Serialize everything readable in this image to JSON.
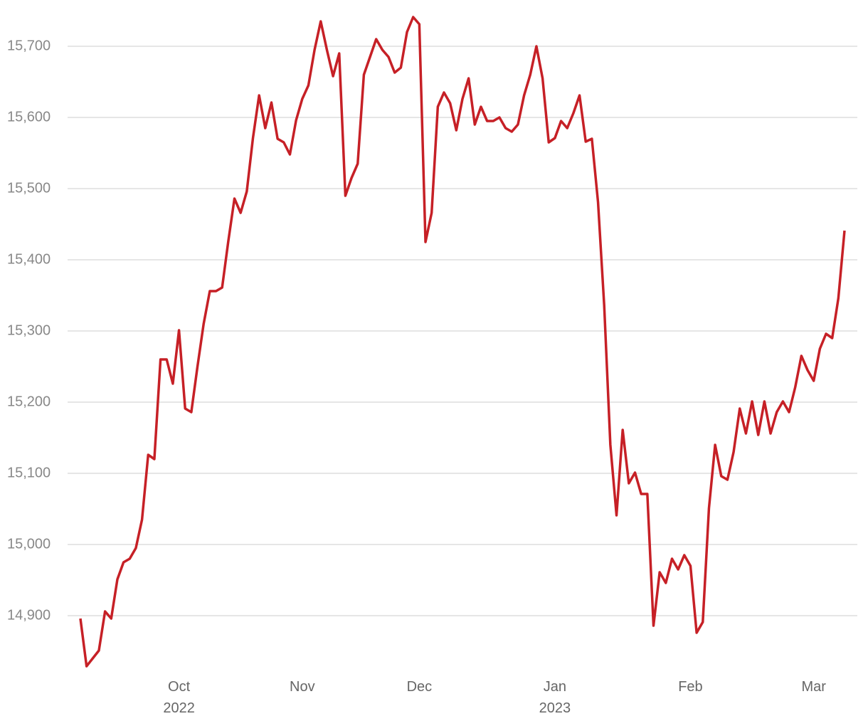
{
  "chart_data": {
    "type": "line",
    "categories": [
      null,
      null,
      null,
      null,
      null,
      null,
      null,
      null,
      null,
      null,
      null,
      null,
      null,
      null,
      null,
      null,
      "Oct 2022",
      null,
      null,
      null,
      null,
      null,
      null,
      null,
      null,
      null,
      null,
      null,
      null,
      null,
      null,
      null,
      null,
      null,
      null,
      null,
      "Nov",
      null,
      null,
      null,
      null,
      null,
      null,
      null,
      null,
      null,
      null,
      null,
      null,
      null,
      null,
      null,
      null,
      null,
      null,
      "Dec",
      null,
      null,
      null,
      null,
      null,
      null,
      null,
      null,
      null,
      null,
      null,
      null,
      null,
      null,
      null,
      null,
      null,
      null,
      null,
      null,
      null,
      "Jan 2023",
      null,
      null,
      null,
      null,
      null,
      null,
      null,
      null,
      null,
      null,
      null,
      null,
      null,
      null,
      null,
      null,
      null,
      null,
      null,
      null,
      null,
      "Feb",
      null,
      null,
      null,
      null,
      null,
      null,
      null,
      null,
      null,
      null,
      null,
      null,
      null,
      null,
      null,
      null,
      null,
      null,
      null,
      "Mar",
      null,
      null,
      null,
      null,
      null
    ],
    "values": [
      14896,
      14829,
      14840,
      14851,
      14906,
      14896,
      14951,
      14975,
      14980,
      14995,
      15035,
      15126,
      15120,
      15260,
      15260,
      15226,
      15301,
      15191,
      15186,
      15250,
      15310,
      15356,
      15356,
      15361,
      15426,
      15486,
      15466,
      15496,
      15571,
      15631,
      15585,
      15621,
      15570,
      15565,
      15548,
      15596,
      15626,
      15645,
      15695,
      15735,
      15695,
      15658,
      15690,
      15490,
      15515,
      15535,
      15660,
      15685,
      15710,
      15695,
      15685,
      15663,
      15670,
      15720,
      15741,
      15731,
      15425,
      15466,
      15615,
      15635,
      15620,
      15582,
      15626,
      15655,
      15590,
      15615,
      15595,
      15595,
      15600,
      15585,
      15580,
      15590,
      15631,
      15660,
      15700,
      15655,
      15565,
      15571,
      15595,
      15585,
      15606,
      15631,
      15566,
      15570,
      15481,
      15336,
      15140,
      15041,
      15161,
      15086,
      15101,
      15071,
      15071,
      14886,
      14961,
      14946,
      14980,
      14965,
      14985,
      14970,
      14876,
      14891,
      15051,
      15140,
      15096,
      15091,
      15130,
      15191,
      15156,
      15201,
      15154,
      15201,
      15156,
      15186,
      15201,
      15186,
      15221,
      15265,
      15245,
      15230,
      15275,
      15296,
      15290,
      15346,
      15441
    ],
    "color": "#c62026",
    "ylim": [
      14820,
      15750
    ],
    "yticks": [
      {
        "value": 14900,
        "label": "14,900"
      },
      {
        "value": 15000,
        "label": "15,000"
      },
      {
        "value": 15100,
        "label": "15,100"
      },
      {
        "value": 15200,
        "label": "15,200"
      },
      {
        "value": 15300,
        "label": "15,300"
      },
      {
        "value": 15400,
        "label": "15,400"
      },
      {
        "value": 15500,
        "label": "15,500"
      },
      {
        "value": 15600,
        "label": "15,600"
      },
      {
        "value": 15700,
        "label": "15,700"
      }
    ],
    "grid": true
  }
}
